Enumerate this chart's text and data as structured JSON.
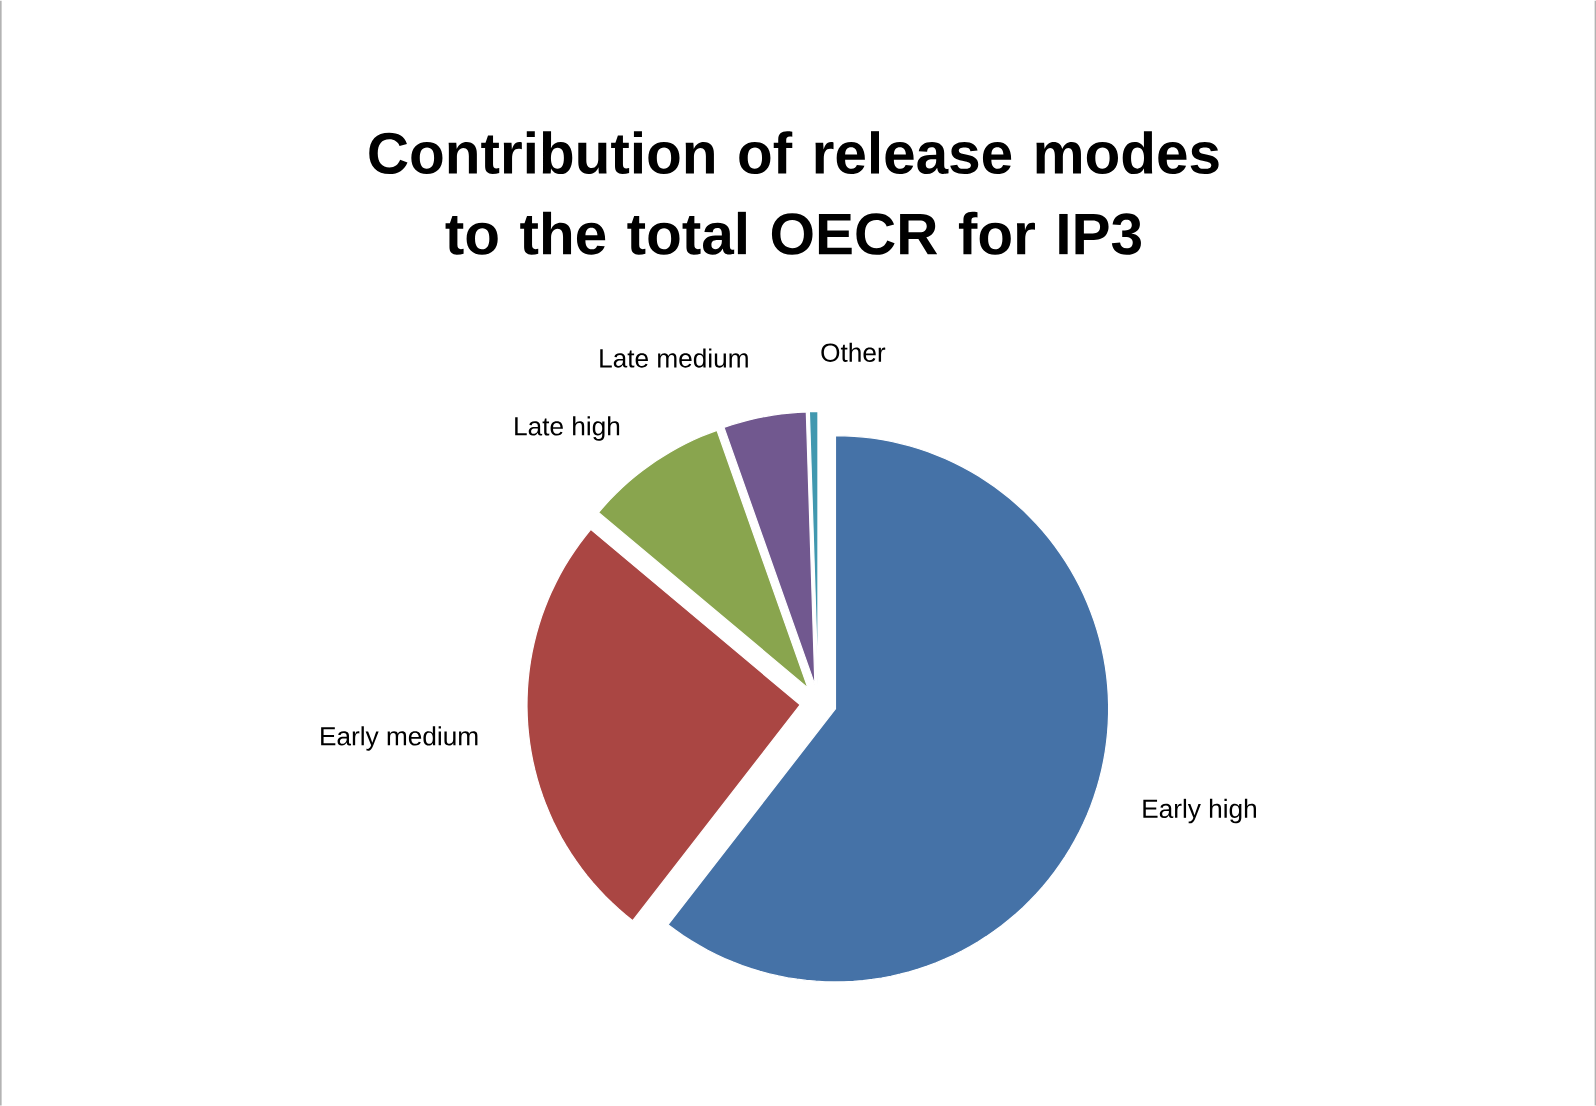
{
  "chart_data": {
    "type": "pie",
    "title": "Contribution of release modes to the total OECR for IP3",
    "categories": [
      "Early high",
      "Early medium",
      "Late high",
      "Late medium",
      "Other"
    ],
    "values": [
      60.5,
      25.6,
      8.5,
      4.9,
      0.5
    ],
    "colors": [
      "#4572a7",
      "#aa4643",
      "#89a54e",
      "#71588f",
      "#4198af"
    ]
  }
}
